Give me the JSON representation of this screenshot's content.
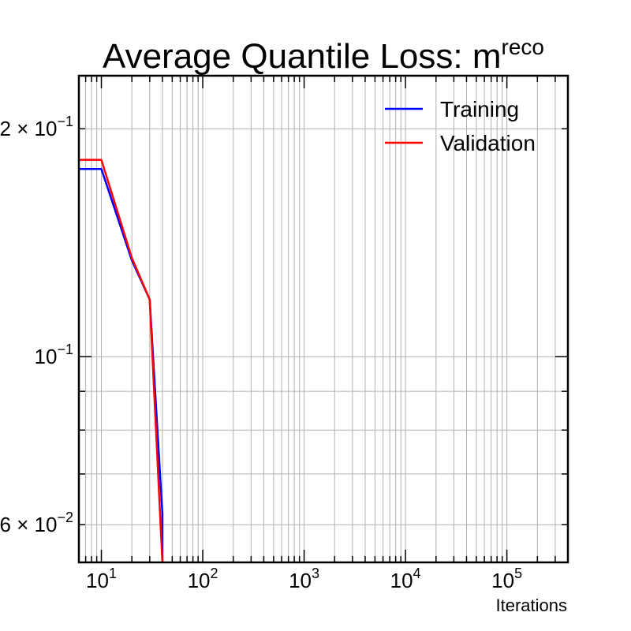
{
  "chart_data": {
    "type": "line",
    "title": "Average Quantile Loss: m",
    "title_superscript": "reco",
    "xlabel": "Iterations",
    "ylabel": "",
    "x_scale": "log",
    "y_scale": "log",
    "xlim": [
      6,
      400000
    ],
    "ylim": [
      0.0535,
      0.235
    ],
    "grid": true,
    "legend_position": "top-right",
    "x_ticks": [
      {
        "value": 10,
        "base": "10",
        "exp": "1"
      },
      {
        "value": 100,
        "base": "10",
        "exp": "2"
      },
      {
        "value": 1000,
        "base": "10",
        "exp": "3"
      },
      {
        "value": 10000,
        "base": "10",
        "exp": "4"
      },
      {
        "value": 100000,
        "base": "10",
        "exp": "5"
      }
    ],
    "y_ticks": [
      {
        "value": 0.2,
        "prefix": "2 × ",
        "base": "10",
        "exp": "−1"
      },
      {
        "value": 0.1,
        "prefix": "",
        "base": "10",
        "exp": "−1"
      },
      {
        "value": 0.06,
        "prefix": "6 × ",
        "base": "10",
        "exp": "−2"
      }
    ],
    "series": [
      {
        "name": "Training",
        "color": "#0000ff",
        "x": [
          6,
          10,
          20,
          30,
          40,
          40
        ],
        "y": [
          0.177,
          0.177,
          0.134,
          0.119,
          0.062,
          0.0535
        ]
      },
      {
        "name": "Validation",
        "color": "#ff0000",
        "x": [
          6,
          10,
          20,
          30,
          40
        ],
        "y": [
          0.182,
          0.182,
          0.135,
          0.119,
          0.0535
        ]
      }
    ]
  }
}
